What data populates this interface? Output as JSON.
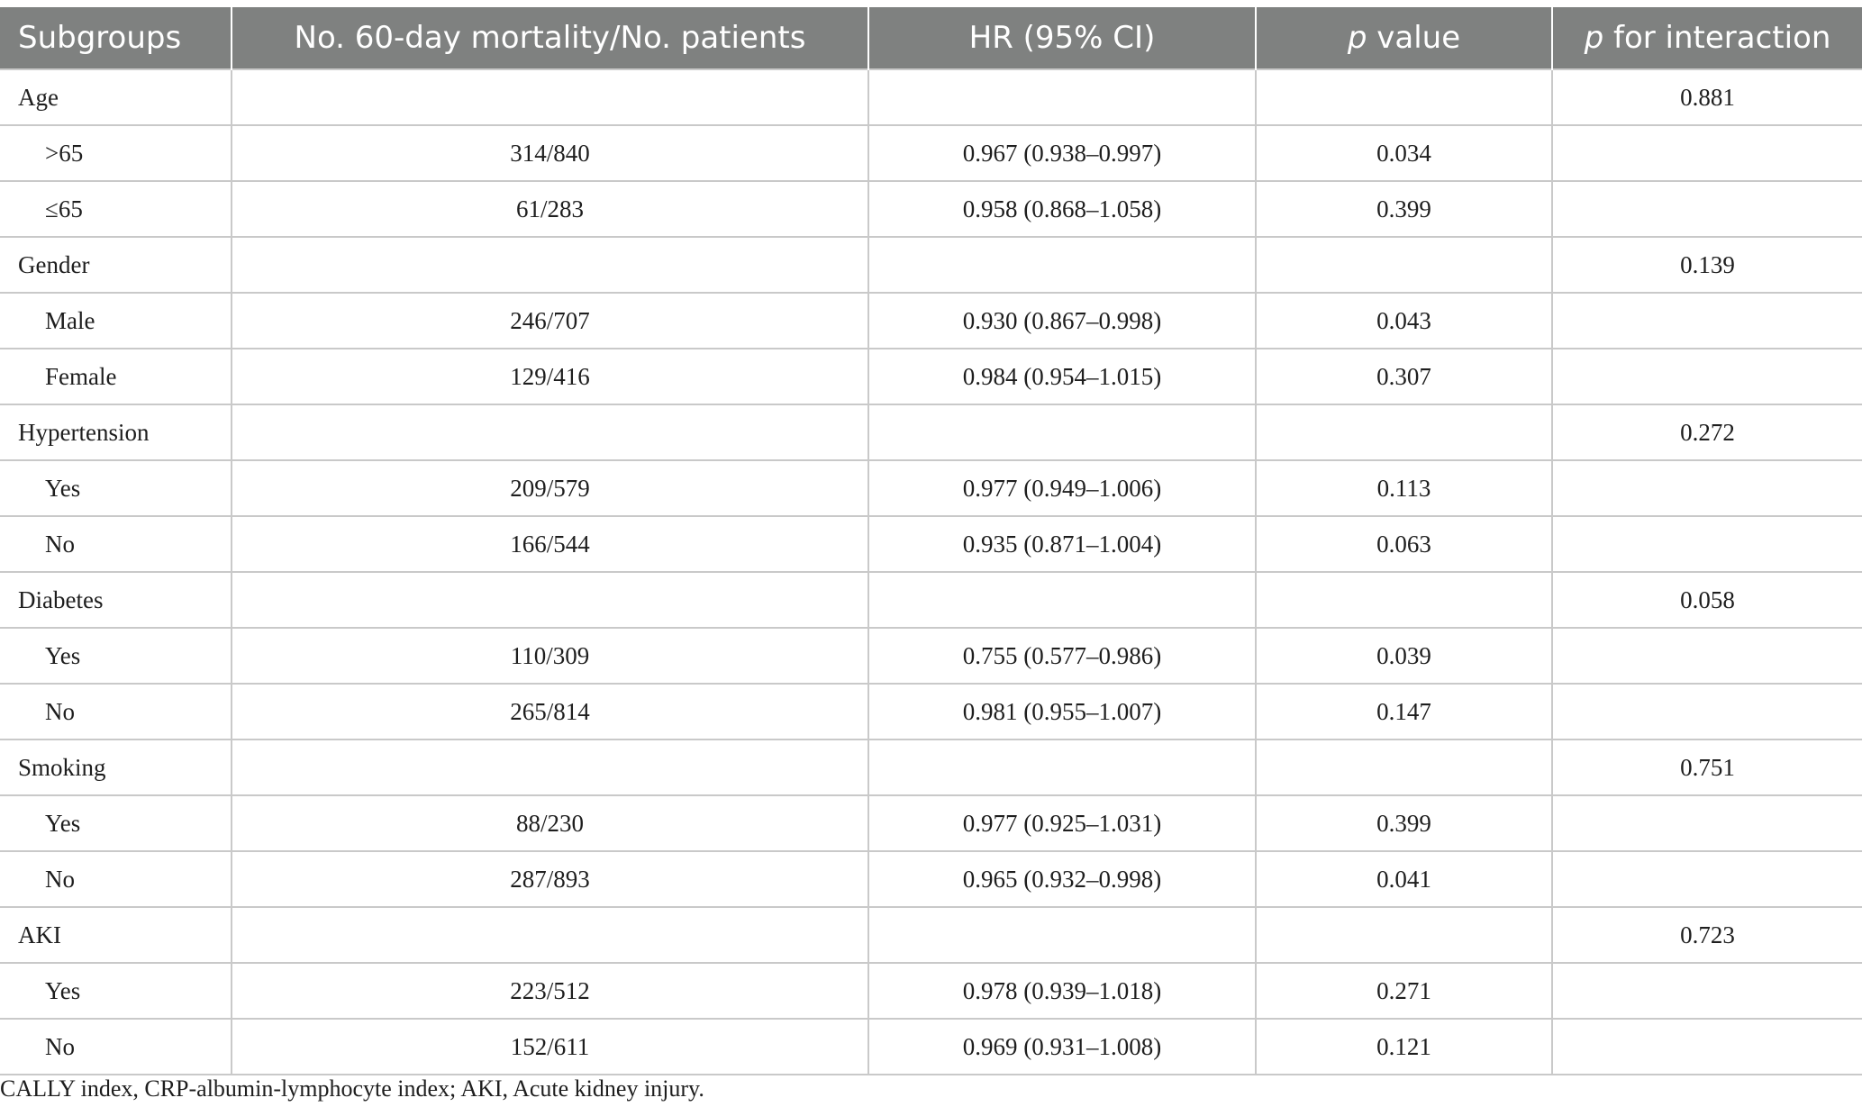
{
  "table": {
    "headers": {
      "subgroups": "Subgroups",
      "mortality": "No. 60-day mortality/No. patients",
      "hr": "HR (95% CI)",
      "p_value_italic": "p",
      "p_value_rest": " value",
      "p_interaction_italic": "p",
      "p_interaction_rest": " for interaction"
    },
    "rows": [
      {
        "type": "group",
        "label": "Age",
        "mortality": "",
        "hr": "",
        "p": "",
        "p_int": "0.881"
      },
      {
        "type": "sub",
        "label": ">65",
        "mortality": "314/840",
        "hr": "0.967 (0.938–0.997)",
        "p": "0.034",
        "p_int": ""
      },
      {
        "type": "sub",
        "label": "≤65",
        "mortality": "61/283",
        "hr": "0.958 (0.868–1.058)",
        "p": "0.399",
        "p_int": ""
      },
      {
        "type": "group",
        "label": "Gender",
        "mortality": "",
        "hr": "",
        "p": "",
        "p_int": "0.139"
      },
      {
        "type": "sub",
        "label": "Male",
        "mortality": "246/707",
        "hr": "0.930 (0.867–0.998)",
        "p": "0.043",
        "p_int": ""
      },
      {
        "type": "sub",
        "label": "Female",
        "mortality": "129/416",
        "hr": "0.984 (0.954–1.015)",
        "p": "0.307",
        "p_int": ""
      },
      {
        "type": "group",
        "label": "Hypertension",
        "mortality": "",
        "hr": "",
        "p": "",
        "p_int": "0.272"
      },
      {
        "type": "sub",
        "label": "Yes",
        "mortality": "209/579",
        "hr": "0.977 (0.949–1.006)",
        "p": "0.113",
        "p_int": ""
      },
      {
        "type": "sub",
        "label": "No",
        "mortality": "166/544",
        "hr": "0.935 (0.871–1.004)",
        "p": "0.063",
        "p_int": ""
      },
      {
        "type": "group",
        "label": "Diabetes",
        "mortality": "",
        "hr": "",
        "p": "",
        "p_int": "0.058"
      },
      {
        "type": "sub",
        "label": "Yes",
        "mortality": "110/309",
        "hr": "0.755 (0.577–0.986)",
        "p": "0.039",
        "p_int": ""
      },
      {
        "type": "sub",
        "label": "No",
        "mortality": "265/814",
        "hr": "0.981 (0.955–1.007)",
        "p": "0.147",
        "p_int": ""
      },
      {
        "type": "group",
        "label": "Smoking",
        "mortality": "",
        "hr": "",
        "p": "",
        "p_int": "0.751"
      },
      {
        "type": "sub",
        "label": "Yes",
        "mortality": "88/230",
        "hr": "0.977 (0.925–1.031)",
        "p": "0.399",
        "p_int": ""
      },
      {
        "type": "sub",
        "label": "No",
        "mortality": "287/893",
        "hr": "0.965 (0.932–0.998)",
        "p": "0.041",
        "p_int": ""
      },
      {
        "type": "group",
        "label": "AKI",
        "mortality": "",
        "hr": "",
        "p": "",
        "p_int": "0.723"
      },
      {
        "type": "sub",
        "label": "Yes",
        "mortality": "223/512",
        "hr": "0.978 (0.939–1.018)",
        "p": "0.271",
        "p_int": ""
      },
      {
        "type": "sub",
        "label": "No",
        "mortality": "152/611",
        "hr": "0.969 (0.931–1.008)",
        "p": "0.121",
        "p_int": ""
      }
    ]
  },
  "footnote": "CALLY index, CRP-albumin-lymphocyte index; AKI, Acute kidney injury.",
  "colors": {
    "header_bg": "#7f8180",
    "header_text": "#ffffff",
    "grid_line": "#c9c9c9",
    "body_text": "#1e1e1e"
  }
}
